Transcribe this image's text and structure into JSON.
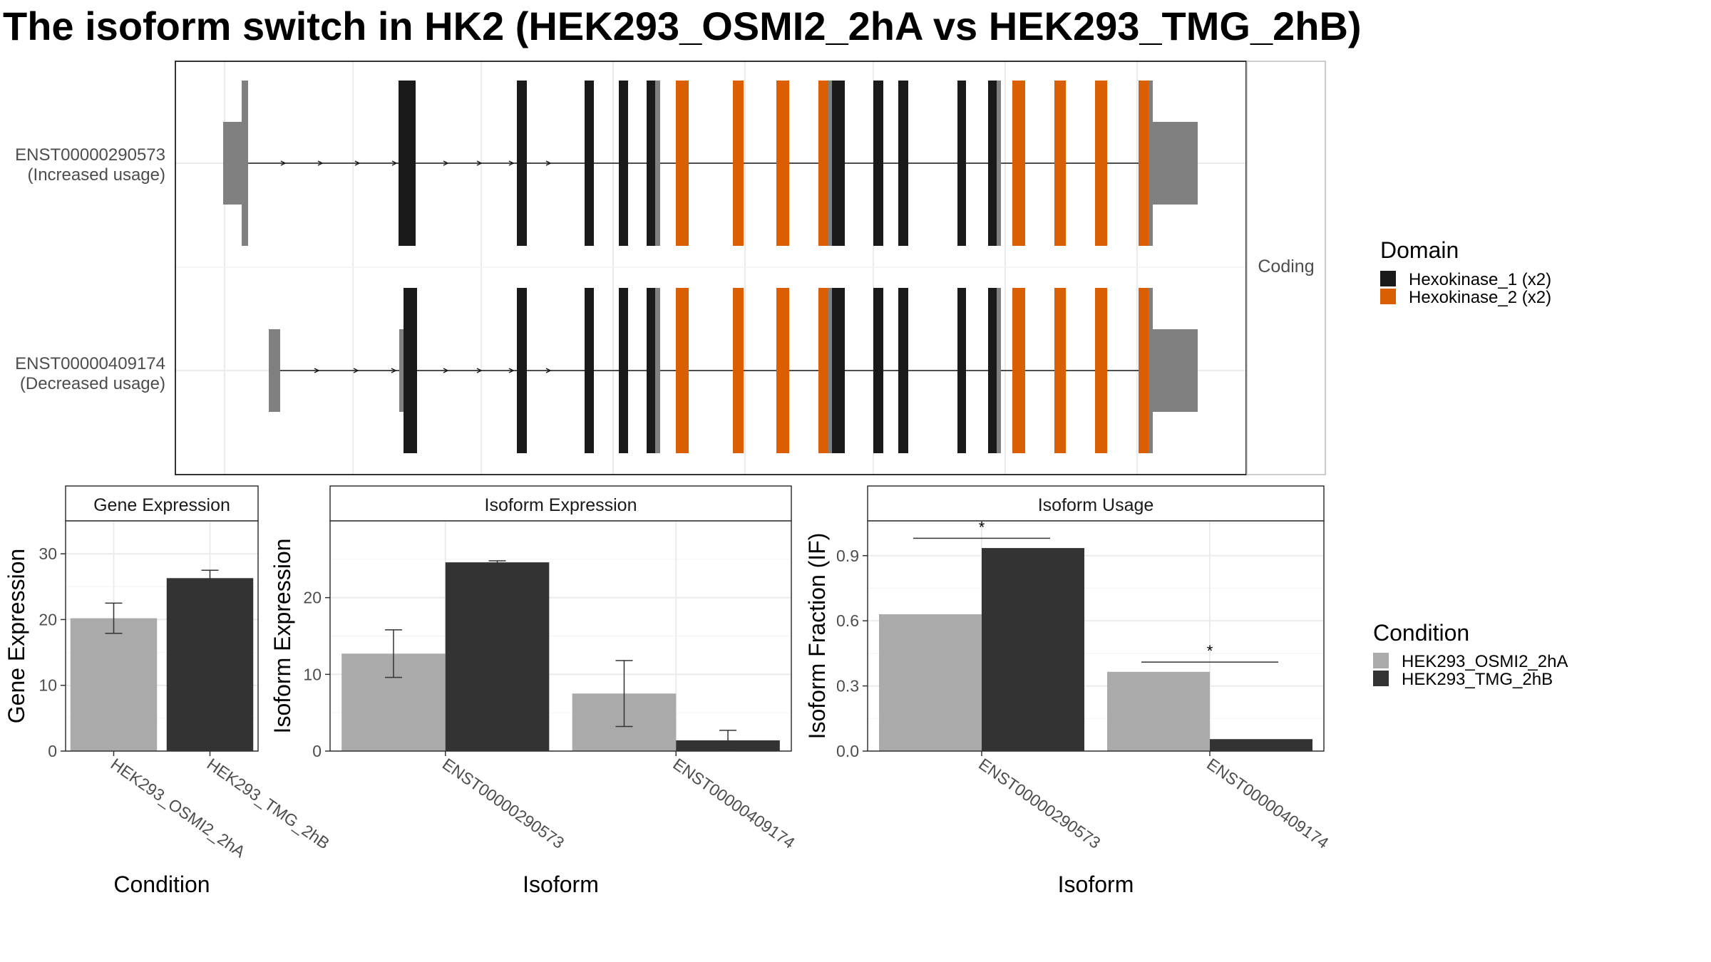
{
  "title": "The isoform switch in HK2 (HEK293_OSMI2_2hA vs HEK293_TMG_2hB)",
  "colors": {
    "hexokinase_1": "#1a1a1a",
    "hexokinase_2": "#d95f02",
    "utr": "#808080",
    "condition_a": "#aaaaaa",
    "condition_b": "#333333"
  },
  "transcripts": [
    {
      "id": "ENST00000290573",
      "note": "(Increased usage)"
    },
    {
      "id": "ENST00000409174",
      "note": "(Decreased usage)"
    }
  ],
  "facet_label": "Coding",
  "legends": {
    "domain": {
      "title": "Domain",
      "items": [
        {
          "label": "Hexokinase_1 (x2)",
          "color": "#1a1a1a"
        },
        {
          "label": "Hexokinase_2 (x2)",
          "color": "#d95f02"
        }
      ]
    },
    "condition": {
      "title": "Condition",
      "items": [
        {
          "label": "HEK293_OSMI2_2hA",
          "color": "#aaaaaa"
        },
        {
          "label": "HEK293_TMG_2hB",
          "color": "#333333"
        }
      ]
    }
  },
  "chart_data": [
    {
      "type": "bar",
      "title": "Gene Expression",
      "xlabel": "Condition",
      "ylabel": "Gene Expression",
      "ylim": [
        0,
        35
      ],
      "yticks": [
        0,
        10,
        20,
        30
      ],
      "categories": [
        "HEK293_OSMI2_2hA",
        "HEK293_TMG_2hB"
      ],
      "values": [
        20.2,
        26.3
      ],
      "error_low": [
        17.9,
        25.3
      ],
      "error_high": [
        22.5,
        27.5
      ]
    },
    {
      "type": "bar",
      "title": "Isoform Expression",
      "xlabel": "Isoform",
      "ylabel": "Isoform Expression",
      "ylim": [
        0,
        30
      ],
      "yticks": [
        0,
        10,
        20
      ],
      "categories": [
        "ENST00000290573",
        "ENST00000409174"
      ],
      "series": [
        {
          "name": "HEK293_OSMI2_2hA",
          "values": [
            12.7,
            7.5
          ],
          "error_low": [
            9.6,
            3.2
          ],
          "error_high": [
            15.8,
            11.8
          ]
        },
        {
          "name": "HEK293_TMG_2hB",
          "values": [
            24.6,
            1.4
          ],
          "error_low": [
            24.5,
            0.2
          ],
          "error_high": [
            24.8,
            2.7
          ]
        }
      ]
    },
    {
      "type": "bar",
      "title": "Isoform Usage",
      "xlabel": "Isoform",
      "ylabel": "Isoform Fraction (IF)",
      "ylim": [
        0,
        1.06
      ],
      "yticks": [
        "0.0",
        "0.3",
        "0.6",
        "0.9"
      ],
      "categories": [
        "ENST00000290573",
        "ENST00000409174"
      ],
      "series": [
        {
          "name": "HEK293_OSMI2_2hA",
          "values": [
            0.63,
            0.365
          ]
        },
        {
          "name": "HEK293_TMG_2hB",
          "values": [
            0.935,
            0.055
          ]
        }
      ],
      "significance": [
        {
          "category": "ENST00000290573",
          "label": "*",
          "y": 0.98
        },
        {
          "category": "ENST00000409174",
          "label": "*",
          "y": 0.41
        }
      ]
    }
  ]
}
